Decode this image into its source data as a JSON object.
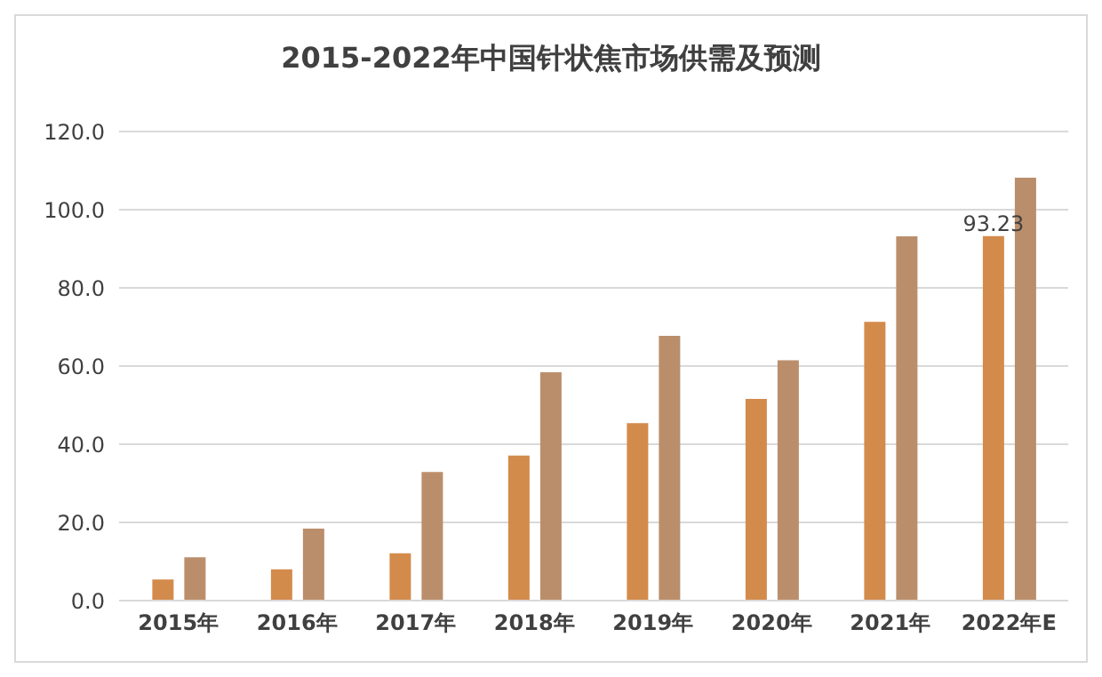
{
  "chart_data": {
    "type": "bar",
    "title": "2015-2022年中国针状焦市场供需及预测",
    "categories": [
      "2015年",
      "2016年",
      "2017年",
      "2018年",
      "2019年",
      "2020年",
      "2021年",
      "2022年E"
    ],
    "series": [
      {
        "color": "#d38b4c",
        "values": [
          5.4,
          8.0,
          12.1,
          37.1,
          45.4,
          51.6,
          71.3,
          93.23
        ],
        "value_labels": [
          null,
          null,
          null,
          null,
          null,
          null,
          null,
          "93.23"
        ]
      },
      {
        "color": "#bb8e6b",
        "values": [
          11.1,
          18.4,
          32.9,
          58.4,
          67.7,
          61.5,
          93.2,
          108.2
        ]
      }
    ],
    "ylim": [
      0,
      120
    ],
    "yticks": [
      {
        "value": 0,
        "label": "0.0"
      },
      {
        "value": 20,
        "label": "20.0"
      },
      {
        "value": 40,
        "label": "40.0"
      },
      {
        "value": 60,
        "label": "60.0"
      },
      {
        "value": 80,
        "label": "80.0"
      },
      {
        "value": 100,
        "label": "100.0"
      },
      {
        "value": 120,
        "label": "120.0"
      }
    ],
    "grid": "y",
    "legend": false
  }
}
